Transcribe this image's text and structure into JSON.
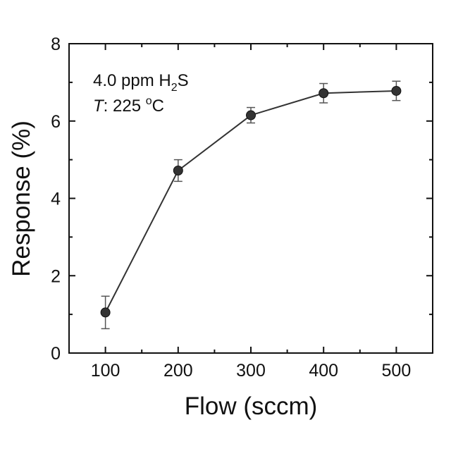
{
  "chart_data": {
    "type": "line",
    "xlabel": "Flow (sccm)",
    "ylabel": "Response (%)",
    "xlim": [
      50,
      550
    ],
    "ylim": [
      0,
      8
    ],
    "x_ticks": [
      100,
      200,
      300,
      400,
      500
    ],
    "y_ticks": [
      0,
      2,
      4,
      6,
      8
    ],
    "grid": false,
    "annotation": {
      "line1_prefix": "4.0 ppm H",
      "line1_sub": "2",
      "line1_suffix": "S",
      "line2_var": "T",
      "line2_text": ": 225 ",
      "line2_sup": "o",
      "line2_unit": "C"
    },
    "series": [
      {
        "x": [
          100,
          200,
          300,
          400,
          500
        ],
        "values": [
          1.05,
          4.72,
          6.15,
          6.72,
          6.78
        ],
        "error": [
          0.42,
          0.28,
          0.2,
          0.25,
          0.25
        ],
        "color": "#333333"
      }
    ]
  }
}
